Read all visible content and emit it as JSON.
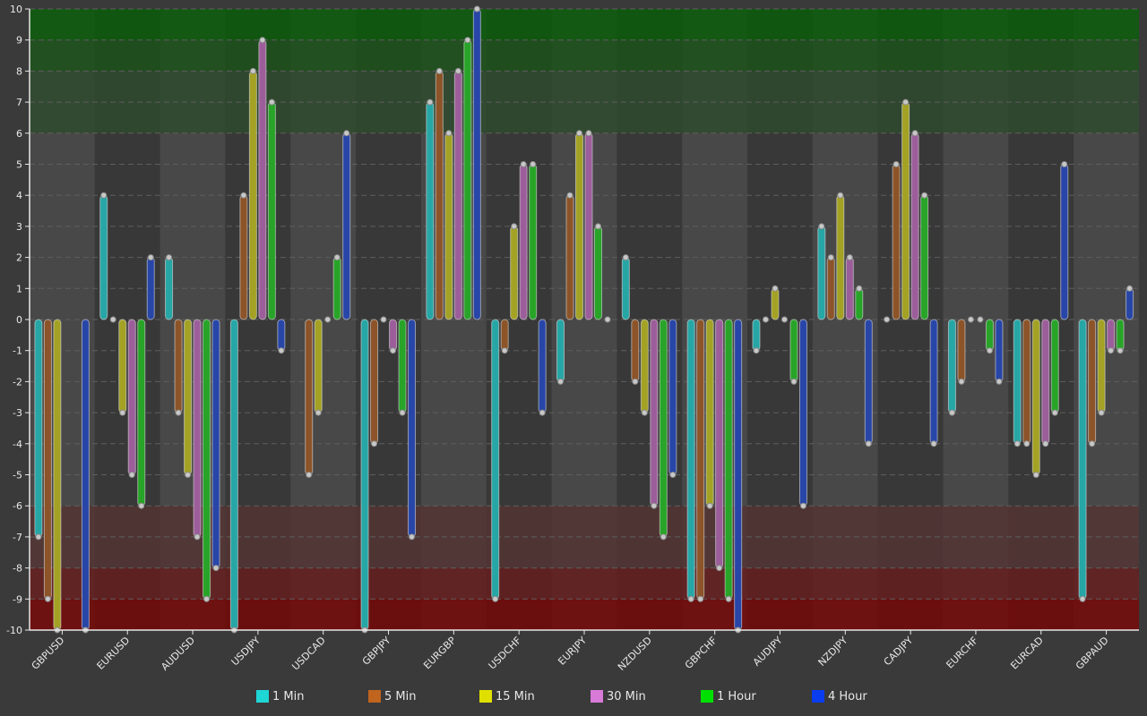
{
  "chart_data": {
    "type": "bar",
    "title": "",
    "xlabel": "",
    "ylabel": "",
    "ylim": [
      -10,
      10
    ],
    "yticks": [
      10,
      9,
      8,
      7,
      6,
      5,
      4,
      3,
      2,
      1,
      0,
      -1,
      -2,
      -3,
      -4,
      -5,
      -6,
      -7,
      -8,
      -9,
      -10
    ],
    "grid": true,
    "legend_position": "bottom",
    "categories": [
      "GBPUSD",
      "EURUSD",
      "AUDUSD",
      "USDJPY",
      "USDCAD",
      "GBPJPY",
      "EURGBP",
      "USDCHF",
      "EURJPY",
      "NZDUSD",
      "GBPCHF",
      "AUDJPY",
      "NZDJPY",
      "CADJPY",
      "EURCHF",
      "EURCAD",
      "GBPAUD"
    ],
    "series": [
      {
        "name": "1 Min",
        "color": "#1fd6d6",
        "bar_color": "#27a6a6",
        "values": [
          -7,
          4,
          2,
          -10,
          null,
          -10,
          7,
          -9,
          -2,
          2,
          -9,
          -1,
          3,
          0,
          -3,
          -4,
          -9
        ]
      },
      {
        "name": "5 Min",
        "color": "#c0641e",
        "bar_color": "#8c5428",
        "values": [
          -9,
          0,
          -3,
          4,
          -5,
          -4,
          8,
          -1,
          4,
          -2,
          -9,
          0,
          2,
          5,
          -2,
          -4,
          -4
        ]
      },
      {
        "name": "15 Min",
        "color": "#e0e000",
        "bar_color": "#a4a224",
        "values": [
          -10,
          -3,
          -5,
          8,
          -3,
          0,
          6,
          3,
          6,
          -3,
          -6,
          1,
          4,
          7,
          0,
          -5,
          -3
        ]
      },
      {
        "name": "30 Min",
        "color": "#d87ad8",
        "bar_color": "#9c5e9a",
        "values": [
          null,
          -5,
          -7,
          9,
          0,
          -1,
          8,
          5,
          6,
          -6,
          -8,
          0,
          2,
          6,
          0,
          -4,
          -1
        ]
      },
      {
        "name": "1 Hour",
        "color": "#00e000",
        "bar_color": "#28a428",
        "values": [
          null,
          -6,
          -9,
          7,
          2,
          -3,
          9,
          5,
          3,
          -7,
          -9,
          -2,
          1,
          4,
          -1,
          -3,
          -1
        ]
      },
      {
        "name": "4 Hour",
        "color": "#0a3cf0",
        "bar_color": "#2846a8",
        "values": [
          -10,
          2,
          -8,
          -1,
          6,
          -7,
          10,
          -3,
          0,
          -5,
          -10,
          -6,
          -4,
          -4,
          -2,
          5,
          1
        ]
      }
    ],
    "bands": [
      {
        "from": 9,
        "to": 10,
        "color": "#075d07"
      },
      {
        "from": 8,
        "to": 9,
        "color": "#1a5218"
      },
      {
        "from": 6,
        "to": 8,
        "color": "#2d4a2c"
      },
      {
        "from": -8,
        "to": -6,
        "color": "#543333"
      },
      {
        "from": -9,
        "to": -8,
        "color": "#661c1c"
      },
      {
        "from": -10,
        "to": -9,
        "color": "#760505"
      }
    ]
  },
  "colors": {
    "background": "#3a3a3a",
    "plot_light": "#484848",
    "plot_dark": "#383838",
    "axis": "#e8e8e8",
    "grid": "#5e5e5e"
  }
}
